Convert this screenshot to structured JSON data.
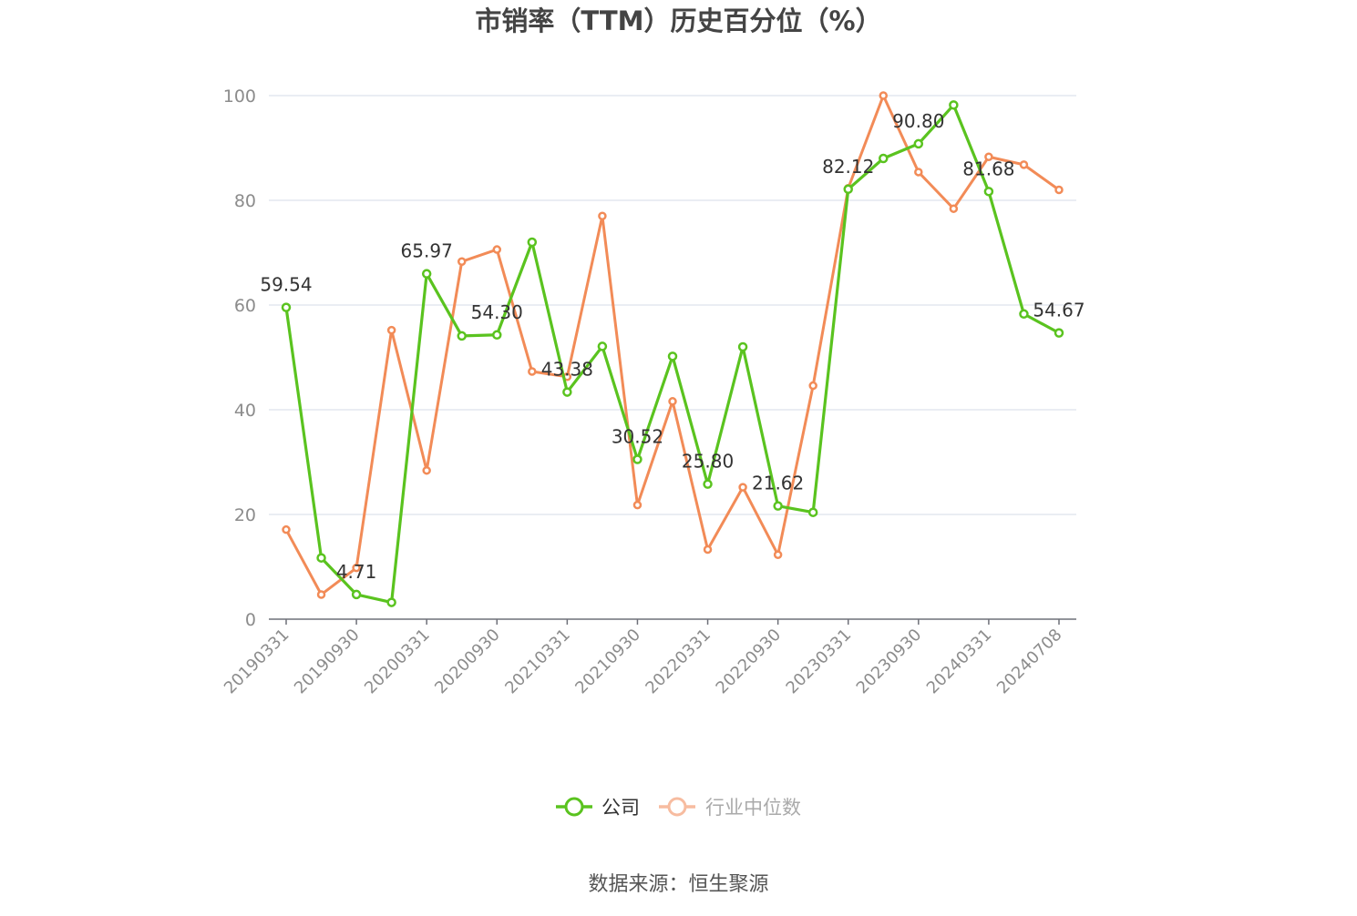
{
  "colors": {
    "company": "#5ac31f",
    "industry": "#f28b57",
    "industry_legend": "#f7bca0",
    "grid": "#e4e7ef",
    "axis": "#6e7079",
    "tick_text": "#8c8c8c",
    "label_text": "#333333"
  },
  "source": "数据来源：恒生聚源",
  "chart_data": {
    "type": "line",
    "title": "市销率（TTM）历史百分位（%）",
    "xlabel": "",
    "ylabel": "",
    "ylim": [
      0,
      100
    ],
    "yticks": [
      0,
      20,
      40,
      60,
      80,
      100
    ],
    "grid": "horizontal",
    "legend_position": "bottom-center",
    "x": [
      "20190331",
      "20190630",
      "20190930",
      "20191231",
      "20200331",
      "20200630",
      "20200930",
      "20201231",
      "20210331",
      "20210630",
      "20210930",
      "20211231",
      "20220331",
      "20220630",
      "20220930",
      "20221231",
      "20230331",
      "20230630",
      "20230930",
      "20231231",
      "20240331",
      "20240630",
      "20240708"
    ],
    "xticks": [
      "20190331",
      "20190930",
      "20200331",
      "20200930",
      "20210331",
      "20210930",
      "20220331",
      "20220930",
      "20230331",
      "20230930",
      "20240331",
      "20240708"
    ],
    "series": [
      {
        "name": "公司",
        "values": [
          59.54,
          11.7,
          4.71,
          3.2,
          65.97,
          54.1,
          54.3,
          72.0,
          43.38,
          52.1,
          30.52,
          50.2,
          25.8,
          52.0,
          21.62,
          20.4,
          82.12,
          88.0,
          90.8,
          98.2,
          81.68,
          58.3,
          54.67
        ],
        "labels": {
          "0": "59.54",
          "2": "4.71",
          "4": "65.97",
          "6": "54.30",
          "8": "43.38",
          "10": "30.52",
          "12": "25.80",
          "14": "21.62",
          "16": "82.12",
          "18": "90.80",
          "20": "81.68",
          "22": "54.67"
        }
      },
      {
        "name": "行业中位数",
        "values": [
          17.1,
          4.7,
          9.8,
          55.2,
          28.4,
          68.3,
          70.6,
          47.3,
          46.3,
          77.0,
          21.8,
          41.6,
          13.3,
          25.2,
          12.3,
          44.6,
          82.3,
          100.0,
          85.4,
          78.4,
          88.3,
          86.8,
          82.0
        ]
      }
    ]
  }
}
